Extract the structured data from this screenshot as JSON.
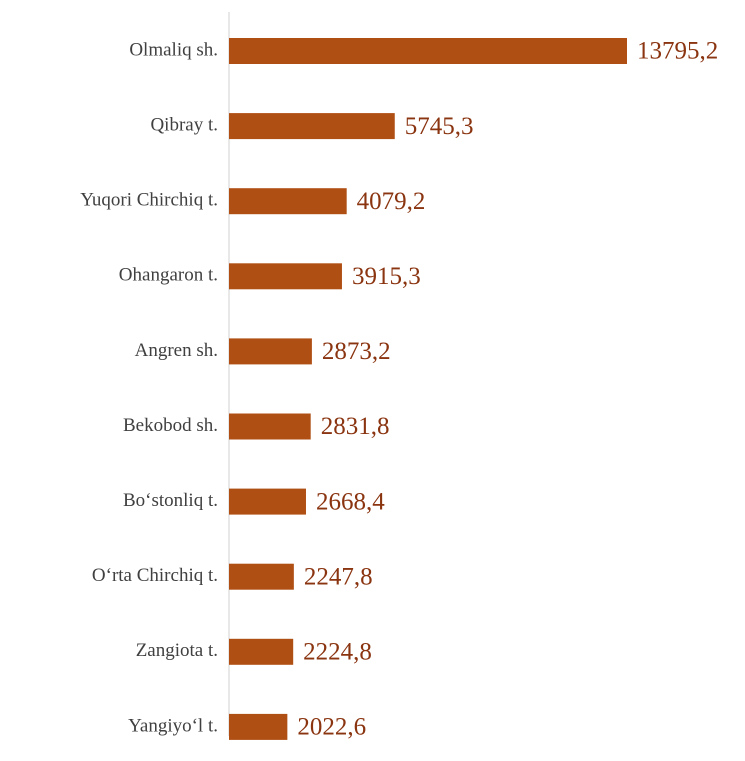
{
  "chart_data": {
    "type": "bar",
    "orientation": "horizontal",
    "color": "#b04f14",
    "categories": [
      "Olmaliq sh.",
      "Qibray t.",
      "Yuqori Chirchiq t.",
      "Ohangaron t.",
      "Angren sh.",
      "Bekobod sh.",
      "Bo‘stonliq t.",
      "O‘rta Chirchiq t.",
      "Zangiota t.",
      "Yangiyo‘l t."
    ],
    "values": [
      13795.2,
      5745.3,
      4079.2,
      3915.3,
      2873.2,
      2831.8,
      2668.4,
      2247.8,
      2224.8,
      2022.6
    ],
    "value_labels": [
      "13795,2",
      "5745,3",
      "4079,2",
      "3915,3",
      "2873,2",
      "2831,8",
      "2668,4",
      "2247,8",
      "2224,8",
      "2022,6"
    ]
  }
}
